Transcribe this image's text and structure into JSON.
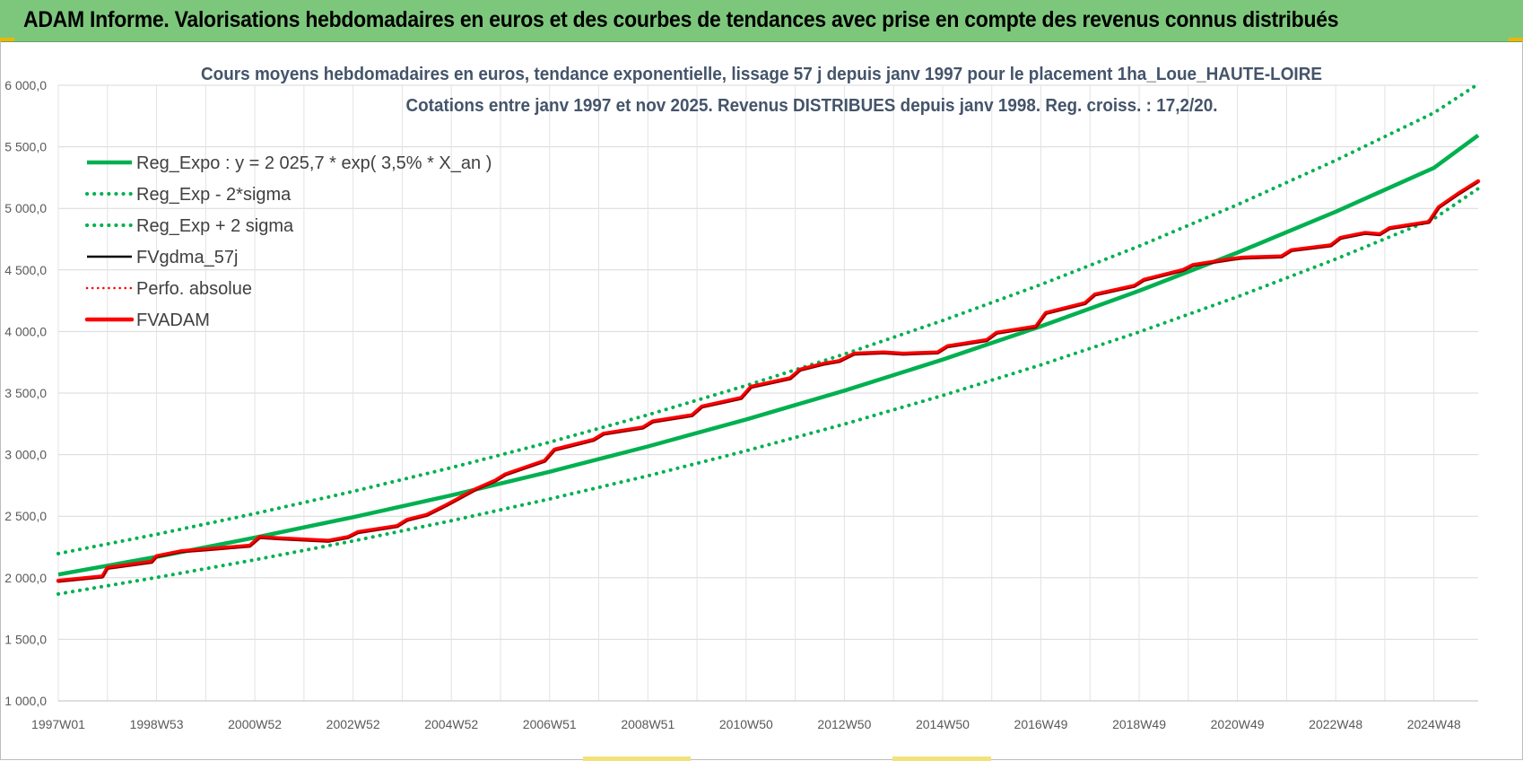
{
  "header": {
    "title": "ADAM Informe. Valorisations hebdomadaires en euros et des courbes de tendances avec prise en compte des revenus connus distribués"
  },
  "colors": {
    "reg_expo": "#00b050",
    "reg_band": "#00b050",
    "fvgdma": "#000000",
    "perfo": "#ff0000",
    "fvadam": "#ff0000",
    "title_text": "#44546a",
    "header_bg": "#7dc77c"
  },
  "chart_data": {
    "type": "line",
    "title": "Cours moyens hebdomadaires en euros, tendance exponentielle, lissage 57 j depuis janv 1997  pour le placement 1ha_Loue_HAUTE-LOIRE",
    "subtitle": "Cotations entre janv 1997 et nov 2025. Revenus  DISTRIBUES depuis janv 1998.  Reg. croiss. : 17,2/20.",
    "xlabel": "",
    "ylabel": "",
    "ylim": [
      1000,
      6000
    ],
    "xlim": [
      1997.0,
      2025.9
    ],
    "grid": true,
    "legend_position": "top-left",
    "y_ticks": [
      "1 000,0",
      "1 500,0",
      "2 000,0",
      "2 500,0",
      "3 000,0",
      "3 500,0",
      "4 000,0",
      "4 500,0",
      "5 000,0",
      "5 500,0",
      "6 000,0"
    ],
    "y_tick_values": [
      1000,
      1500,
      2000,
      2500,
      3000,
      3500,
      4000,
      4500,
      5000,
      5500,
      6000
    ],
    "x_ticks": [
      "1997W01",
      "1998W53",
      "2000W52",
      "2002W52",
      "2004W52",
      "2006W51",
      "2008W51",
      "2010W50",
      "2012W50",
      "2014W50",
      "2016W49",
      "2018W49",
      "2020W49",
      "2022W48",
      "2024W48"
    ],
    "x_tick_values": [
      1997.0,
      1999.0,
      2001.0,
      2003.0,
      2005.0,
      2007.0,
      2009.0,
      2011.0,
      2013.0,
      2015.0,
      2017.0,
      2019.0,
      2021.0,
      2023.0,
      2025.0
    ],
    "series": [
      {
        "name": "Reg_Expo : y = 2 025,7 * exp( 3,5% *  X_an )",
        "kind": "trend",
        "style": "solid",
        "x": [
          1997,
          1999,
          2001,
          2003,
          2005,
          2007,
          2009,
          2011,
          2013,
          2015,
          2017,
          2019,
          2021,
          2023,
          2025,
          2025.9
        ],
        "values": [
          2026,
          2170,
          2326,
          2492,
          2670,
          2861,
          3066,
          3286,
          3520,
          3772,
          4042,
          4331,
          4641,
          4973,
          5329,
          5593
        ]
      },
      {
        "name": "Reg_Exp - 2*sigma",
        "kind": "band",
        "style": "dotted",
        "x": [
          1997,
          1999,
          2001,
          2003,
          2005,
          2007,
          2009,
          2011,
          2013,
          2015,
          2017,
          2019,
          2021,
          2023,
          2025,
          2025.9
        ],
        "values": [
          1868,
          2002,
          2146,
          2299,
          2463,
          2640,
          2828,
          3031,
          3248,
          3480,
          3729,
          3996,
          4282,
          4588,
          4916,
          5160
        ]
      },
      {
        "name": "Reg_Exp + 2 sigma",
        "kind": "band",
        "style": "dotted",
        "x": [
          1997,
          1999,
          2001,
          2003,
          2005,
          2007,
          2009,
          2011,
          2013,
          2015,
          2017,
          2019,
          2021,
          2023,
          2025,
          2025.9
        ],
        "values": [
          2196,
          2353,
          2521,
          2701,
          2894,
          3101,
          3323,
          3561,
          3816,
          4089,
          4381,
          4694,
          5030,
          5390,
          5776,
          6010
        ]
      },
      {
        "name": "FVgdma_57j",
        "kind": "smooth",
        "style": "solid",
        "x": [
          1997.0,
          1997.9,
          1998.0,
          1998.9,
          1999.0,
          1999.5,
          2000.0,
          2000.9,
          2001.1,
          2001.5,
          2002.0,
          2002.5,
          2002.9,
          2003.1,
          2003.9,
          2004.1,
          2004.5,
          2004.9,
          2005.5,
          2005.9,
          2006.1,
          2006.9,
          2007.1,
          2007.9,
          2008.1,
          2008.9,
          2009.1,
          2009.9,
          2010.1,
          2010.9,
          2011.1,
          2011.9,
          2012.1,
          2012.6,
          2012.9,
          2013.2,
          2013.8,
          2014.2,
          2014.9,
          2015.1,
          2015.9,
          2016.1,
          2016.9,
          2017.1,
          2017.9,
          2018.1,
          2018.9,
          2019.1,
          2019.9,
          2020.1,
          2020.9,
          2021.1,
          2021.9,
          2022.1,
          2022.9,
          2023.1,
          2023.6,
          2023.9,
          2024.1,
          2024.9,
          2025.1,
          2025.5,
          2025.9
        ],
        "values": [
          1975,
          2010,
          2080,
          2130,
          2175,
          2215,
          2230,
          2260,
          2330,
          2320,
          2310,
          2300,
          2330,
          2370,
          2420,
          2470,
          2510,
          2590,
          2720,
          2790,
          2840,
          2950,
          3040,
          3120,
          3170,
          3220,
          3270,
          3320,
          3390,
          3460,
          3550,
          3620,
          3690,
          3740,
          3760,
          3820,
          3830,
          3820,
          3830,
          3880,
          3930,
          3990,
          4040,
          4150,
          4230,
          4300,
          4370,
          4420,
          4500,
          4540,
          4590,
          4600,
          4610,
          4660,
          4700,
          4760,
          4800,
          4790,
          4840,
          4890,
          5010,
          5120,
          5220
        ]
      },
      {
        "name": "Perfo. absolue",
        "kind": "perf",
        "style": "dotted",
        "x": [
          1997.0,
          1997.9,
          1998.0,
          1998.9,
          1999.0,
          1999.5,
          2000.0,
          2000.9,
          2001.1,
          2001.5,
          2002.0,
          2002.5,
          2002.9,
          2003.1,
          2003.9,
          2004.1,
          2004.5,
          2004.9,
          2005.5,
          2005.9,
          2006.1,
          2006.9,
          2007.1,
          2007.9,
          2008.1,
          2008.9,
          2009.1,
          2009.9,
          2010.1,
          2010.9,
          2011.1,
          2011.9,
          2012.1,
          2012.6,
          2012.9,
          2013.2,
          2013.8,
          2014.2,
          2014.9,
          2015.1,
          2015.9,
          2016.1,
          2016.9,
          2017.1,
          2017.9,
          2018.1,
          2018.9,
          2019.1,
          2019.9,
          2020.1,
          2020.9,
          2021.1,
          2021.9,
          2022.1,
          2022.9,
          2023.1,
          2023.6,
          2023.9,
          2024.1,
          2024.9,
          2025.1,
          2025.5,
          2025.9
        ],
        "values": [
          1975,
          2010,
          2080,
          2130,
          2175,
          2215,
          2230,
          2260,
          2330,
          2320,
          2310,
          2300,
          2330,
          2370,
          2420,
          2470,
          2510,
          2590,
          2720,
          2790,
          2840,
          2950,
          3040,
          3120,
          3170,
          3220,
          3270,
          3320,
          3390,
          3460,
          3550,
          3620,
          3690,
          3740,
          3760,
          3820,
          3830,
          3820,
          3830,
          3880,
          3930,
          3990,
          4040,
          4150,
          4230,
          4300,
          4370,
          4420,
          4500,
          4540,
          4590,
          4600,
          4610,
          4660,
          4700,
          4760,
          4800,
          4790,
          4840,
          4890,
          5010,
          5120,
          5220
        ]
      },
      {
        "name": "FVADAM",
        "kind": "main",
        "style": "solid",
        "x": [
          1997.0,
          1997.9,
          1998.0,
          1998.9,
          1999.0,
          1999.5,
          2000.0,
          2000.9,
          2001.1,
          2001.5,
          2002.0,
          2002.5,
          2002.9,
          2003.1,
          2003.9,
          2004.1,
          2004.5,
          2004.9,
          2005.5,
          2005.9,
          2006.1,
          2006.9,
          2007.1,
          2007.9,
          2008.1,
          2008.9,
          2009.1,
          2009.9,
          2010.1,
          2010.9,
          2011.1,
          2011.9,
          2012.1,
          2012.6,
          2012.9,
          2013.2,
          2013.8,
          2014.2,
          2014.9,
          2015.1,
          2015.9,
          2016.1,
          2016.9,
          2017.1,
          2017.9,
          2018.1,
          2018.9,
          2019.1,
          2019.9,
          2020.1,
          2020.9,
          2021.1,
          2021.9,
          2022.1,
          2022.9,
          2023.1,
          2023.6,
          2023.9,
          2024.1,
          2024.9,
          2025.1,
          2025.5,
          2025.9
        ],
        "values": [
          1975,
          2010,
          2080,
          2130,
          2175,
          2215,
          2230,
          2260,
          2330,
          2320,
          2310,
          2300,
          2330,
          2370,
          2420,
          2470,
          2510,
          2590,
          2720,
          2790,
          2840,
          2950,
          3040,
          3120,
          3170,
          3220,
          3270,
          3320,
          3390,
          3460,
          3550,
          3620,
          3690,
          3740,
          3760,
          3820,
          3830,
          3820,
          3830,
          3880,
          3930,
          3990,
          4040,
          4150,
          4230,
          4300,
          4370,
          4420,
          4500,
          4540,
          4590,
          4600,
          4610,
          4660,
          4700,
          4760,
          4800,
          4790,
          4840,
          4890,
          5010,
          5120,
          5220
        ]
      }
    ]
  }
}
